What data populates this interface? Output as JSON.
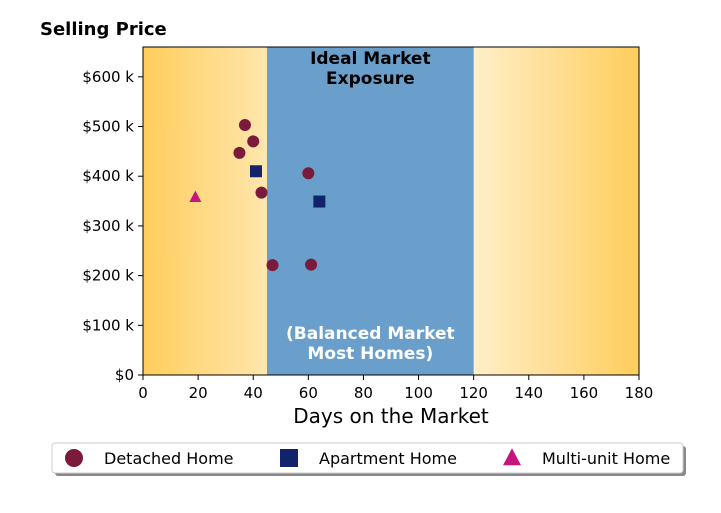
{
  "chart_data": {
    "type": "scatter",
    "title": "Selling Price",
    "xlabel": "Days on the Market",
    "ylabel": "",
    "xlim": [
      0,
      180
    ],
    "ylim": [
      0,
      660000
    ],
    "x_ticks": [
      0,
      20,
      40,
      60,
      80,
      100,
      120,
      140,
      160,
      180
    ],
    "x_tick_labels": [
      "0",
      "20",
      "40",
      "60",
      "80",
      "100",
      "120",
      "140",
      "160",
      "180"
    ],
    "y_ticks": [
      0,
      100000,
      200000,
      300000,
      400000,
      500000,
      600000
    ],
    "y_tick_labels": [
      "$0",
      "$100 k",
      "$200 k",
      "$300 k",
      "$400 k",
      "$500 k",
      "$600 k"
    ],
    "grid": false,
    "legend_position": "bottom",
    "band": {
      "x_range": [
        45,
        120
      ],
      "color": "#6a9fcc",
      "title_lines": [
        "Ideal Market",
        "Exposure"
      ],
      "subtitle_lines": [
        "(Balanced Market",
        "Most Homes)"
      ]
    },
    "background_gradient": {
      "edge_color": "#ffcd5c",
      "center_color": "#ffffff"
    },
    "series": [
      {
        "name": "Detached Home",
        "marker": "circle",
        "color": "#7b1a3a",
        "points": [
          {
            "x": 37,
            "y": 503000
          },
          {
            "x": 40,
            "y": 470000
          },
          {
            "x": 35,
            "y": 447000
          },
          {
            "x": 43,
            "y": 367000
          },
          {
            "x": 60,
            "y": 406000
          },
          {
            "x": 47,
            "y": 221000
          },
          {
            "x": 61,
            "y": 222000
          }
        ]
      },
      {
        "name": "Apartment Home",
        "marker": "square",
        "color": "#13236b",
        "points": [
          {
            "x": 41,
            "y": 410000
          },
          {
            "x": 64,
            "y": 349000
          }
        ]
      },
      {
        "name": "Multi-unit Home",
        "marker": "triangle",
        "color": "#c5157e",
        "points": [
          {
            "x": 19,
            "y": 358000
          }
        ]
      }
    ]
  }
}
